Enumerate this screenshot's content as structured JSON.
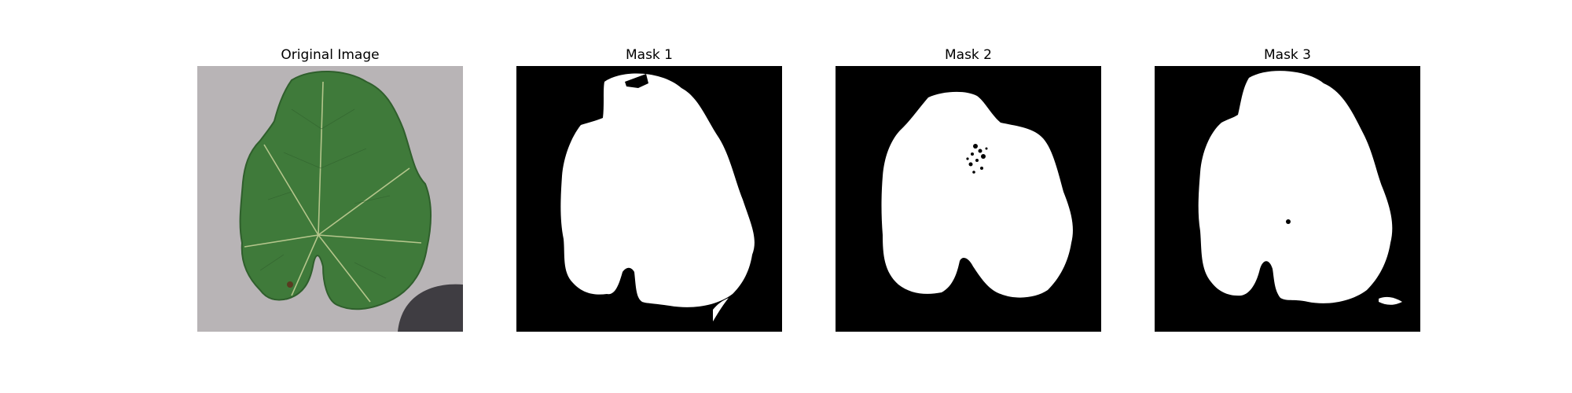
{
  "panels": [
    {
      "title": "Original Image",
      "kind": "photo"
    },
    {
      "title": "Mask 1",
      "kind": "mask"
    },
    {
      "title": "Mask 2",
      "kind": "mask"
    },
    {
      "title": "Mask 3",
      "kind": "mask"
    }
  ],
  "colors": {
    "background_surface": "#b3aeb0",
    "leaf_green": "#3f7a3a",
    "leaf_dark": "#2f5f2c",
    "vein": "#c9d39a",
    "shadow": "#3f3d42",
    "mask_bg": "#000000",
    "mask_fg": "#ffffff"
  }
}
